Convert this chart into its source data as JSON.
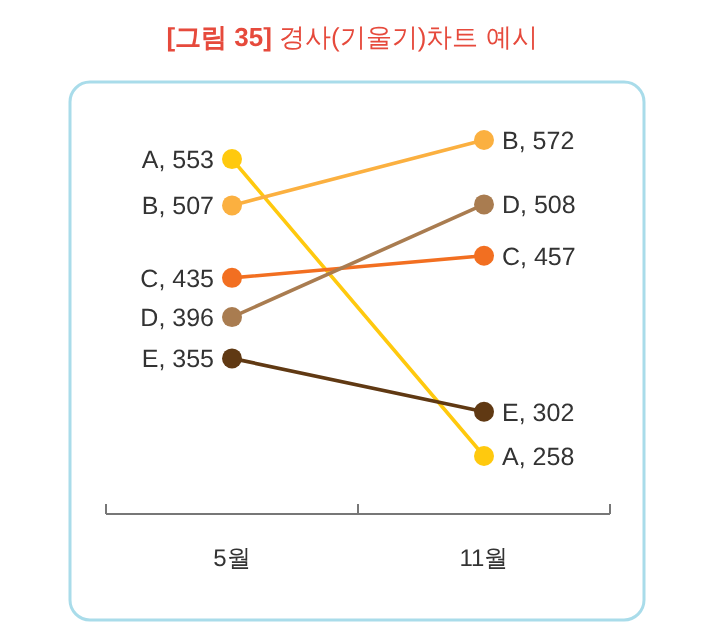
{
  "chart_data": {
    "type": "line",
    "title": "[그림 35] 경사(기울기)차트 예시",
    "categories": [
      "5월",
      "11월"
    ],
    "series": [
      {
        "name": "A",
        "color": "#ffc90e",
        "values": [
          553,
          258
        ],
        "value_labels": [
          ", 553",
          ", 258"
        ]
      },
      {
        "name": "B",
        "color": "#fbb040",
        "values": [
          507,
          572
        ],
        "value_labels": [
          ", 507",
          ", 572"
        ]
      },
      {
        "name": "C",
        "color": "#f26f21",
        "values": [
          435,
          457
        ],
        "value_labels": [
          ", 435",
          ", 457"
        ]
      },
      {
        "name": "D",
        "color": "#a97c50",
        "values": [
          396,
          508
        ],
        "value_labels": [
          ", 396",
          ", 508"
        ]
      },
      {
        "name": "E",
        "color": "#603913",
        "values": [
          355,
          302
        ],
        "value_labels": [
          ", 355",
          ", 302"
        ]
      }
    ],
    "marker": "circle",
    "line_style": "solid"
  }
}
